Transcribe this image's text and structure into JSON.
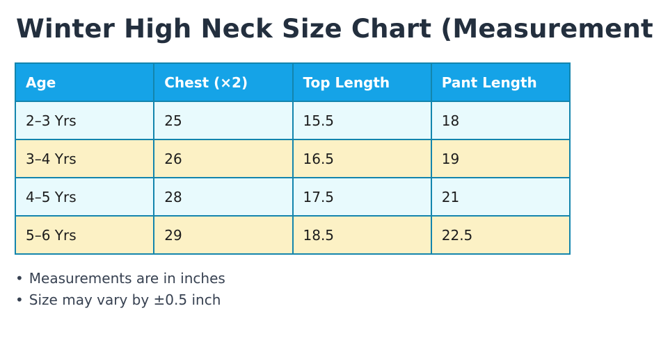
{
  "page": {
    "title": "Winter High Neck Size Chart (Measurement"
  },
  "notes": {
    "bullet_char": "•",
    "items": [
      "Measurements are in inches",
      "Size may vary by ±0.5 inch"
    ]
  },
  "colors": {
    "header_bg": "#15a3e7",
    "header_text": "#ffffff",
    "row_cyan_bg": "#e8fafd",
    "row_yellow_bg": "#fcf1c5",
    "table_border": "#1385ad",
    "title_text": "#232f3e",
    "cell_text": "#1c1c1c",
    "note_text": "#374151"
  },
  "chart_data": {
    "type": "table",
    "title": "Winter High Neck Size Chart (Measurement",
    "columns": [
      "Age",
      "Chest (×2)",
      "Top Length",
      "Pant Length"
    ],
    "rows": [
      [
        "2–3 Yrs",
        "25",
        "15.5",
        "18"
      ],
      [
        "3–4 Yrs",
        "26",
        "16.5",
        "19"
      ],
      [
        "4–5 Yrs",
        "28",
        "17.5",
        "21"
      ],
      [
        "5–6 Yrs",
        "29",
        "18.5",
        "22.5"
      ]
    ],
    "layout_hints": {
      "header_fill": "#15a3e7",
      "alternating_row_fills": [
        "#e8fafd",
        "#fcf1c5"
      ],
      "grid": true
    }
  }
}
